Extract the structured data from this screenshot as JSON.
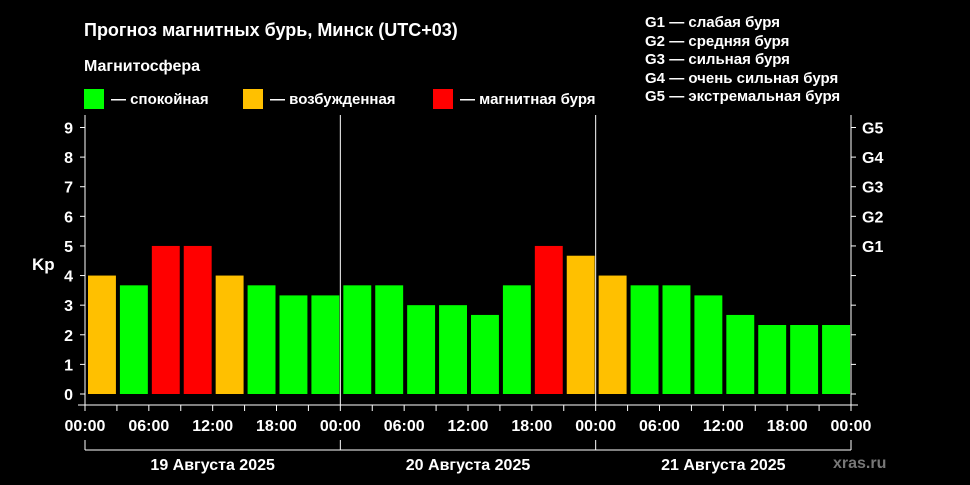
{
  "header": {
    "title": "Прогноз магнитных бурь, Минск (UTC+03)",
    "subtitle": "Магнитосфера"
  },
  "legend": [
    {
      "label": "— спокойная",
      "color": "#00ff00"
    },
    {
      "label": "— возбужденная",
      "color": "#ffc000"
    },
    {
      "label": "— магнитная буря",
      "color": "#ff0000"
    }
  ],
  "g_scale": [
    {
      "code": "G1",
      "label": "— слабая буря"
    },
    {
      "code": "G2",
      "label": "— средняя буря"
    },
    {
      "code": "G3",
      "label": "— сильная буря"
    },
    {
      "code": "G4",
      "label": "— очень сильная буря"
    },
    {
      "code": "G5",
      "label": "— экстремальная буря"
    }
  ],
  "watermark": "xras.ru",
  "chart_data": {
    "type": "bar",
    "ylabel": "Kp",
    "ylim": [
      0,
      9
    ],
    "y_ticks": [
      "0",
      "1",
      "2",
      "3",
      "4",
      "5",
      "6",
      "7",
      "8",
      "9"
    ],
    "right_ticks": [
      {
        "value": 5,
        "label": "G1"
      },
      {
        "value": 6,
        "label": "G2"
      },
      {
        "value": 7,
        "label": "G3"
      },
      {
        "value": 8,
        "label": "G4"
      },
      {
        "value": 9,
        "label": "G5"
      }
    ],
    "x_tick_labels": [
      "00:00",
      "06:00",
      "12:00",
      "18:00",
      "00:00",
      "06:00",
      "12:00",
      "18:00",
      "00:00",
      "06:00",
      "12:00",
      "18:00",
      "00:00"
    ],
    "days": [
      "19 Августа 2025",
      "20 Августа 2025",
      "21 Августа 2025"
    ],
    "bins_per_day": 8,
    "colors": {
      "quiet": "#00ff00",
      "unsettled": "#ffc000",
      "storm": "#ff0000"
    },
    "values": [
      4.0,
      3.67,
      5.0,
      5.0,
      4.0,
      3.67,
      3.33,
      3.33,
      3.67,
      3.67,
      3.0,
      3.0,
      2.67,
      3.67,
      5.0,
      4.67,
      4.0,
      3.67,
      3.67,
      3.33,
      2.67,
      2.33,
      2.33,
      2.33
    ],
    "levels": [
      "unsettled",
      "quiet",
      "storm",
      "storm",
      "unsettled",
      "quiet",
      "quiet",
      "quiet",
      "quiet",
      "quiet",
      "quiet",
      "quiet",
      "quiet",
      "quiet",
      "storm",
      "unsettled",
      "unsettled",
      "quiet",
      "quiet",
      "quiet",
      "quiet",
      "quiet",
      "quiet",
      "quiet"
    ]
  }
}
